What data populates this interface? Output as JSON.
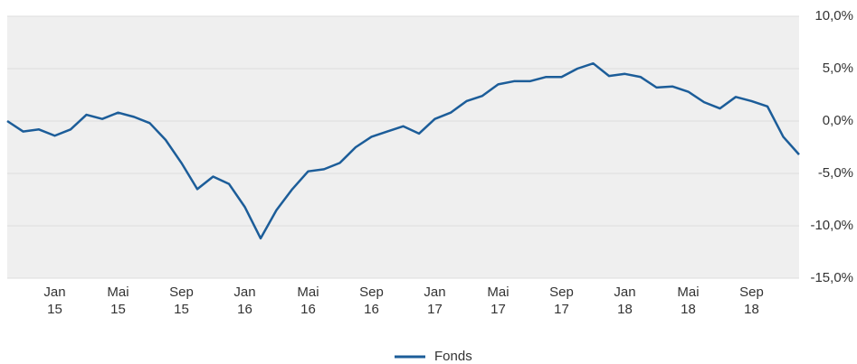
{
  "chart_data": {
    "type": "line",
    "x": [
      "2014-10",
      "2014-11",
      "2014-12",
      "2015-01",
      "2015-02",
      "2015-03",
      "2015-04",
      "2015-05",
      "2015-06",
      "2015-07",
      "2015-08",
      "2015-09",
      "2015-10",
      "2015-11",
      "2015-12",
      "2016-01",
      "2016-02",
      "2016-03",
      "2016-04",
      "2016-05",
      "2016-06",
      "2016-07",
      "2016-08",
      "2016-09",
      "2016-10",
      "2016-11",
      "2016-12",
      "2017-01",
      "2017-02",
      "2017-03",
      "2017-04",
      "2017-05",
      "2017-06",
      "2017-07",
      "2017-08",
      "2017-09",
      "2017-10",
      "2017-11",
      "2017-12",
      "2018-01",
      "2018-02",
      "2018-03",
      "2018-04",
      "2018-05",
      "2018-06",
      "2018-07",
      "2018-08",
      "2018-09",
      "2018-10",
      "2018-11",
      "2018-12"
    ],
    "series": [
      {
        "name": "Fonds",
        "color": "#1c5d99",
        "values": [
          0,
          -1,
          -0.8,
          -1.4,
          -0.8,
          0.6,
          0.2,
          0.8,
          0.4,
          -0.2,
          -1.8,
          -4,
          -6.5,
          -5.3,
          -6,
          -8.2,
          -11.2,
          -8.5,
          -6.5,
          -4.8,
          -4.6,
          -4,
          -2.5,
          -1.5,
          -1,
          -0.5,
          -1.2,
          0.2,
          0.8,
          1.9,
          2.4,
          3.5,
          3.8,
          3.8,
          4.2,
          4.2,
          5,
          5.5,
          4.3,
          4.5,
          4.2,
          3.2,
          3.3,
          2.8,
          1.8,
          1.2,
          2.3,
          1.9,
          1.4,
          -1.5,
          -3.2
        ]
      }
    ],
    "xlim": [
      "2014-10",
      "2018-12"
    ],
    "xticks": [
      {
        "value": "2015-01",
        "label": "Jan\n15"
      },
      {
        "value": "2015-05",
        "label": "Mai\n15"
      },
      {
        "value": "2015-09",
        "label": "Sep\n15"
      },
      {
        "value": "2016-01",
        "label": "Jan\n16"
      },
      {
        "value": "2016-05",
        "label": "Mai\n16"
      },
      {
        "value": "2016-09",
        "label": "Sep\n16"
      },
      {
        "value": "2017-01",
        "label": "Jan\n17"
      },
      {
        "value": "2017-05",
        "label": "Mai\n17"
      },
      {
        "value": "2017-09",
        "label": "Sep\n17"
      },
      {
        "value": "2018-01",
        "label": "Jan\n18"
      },
      {
        "value": "2018-05",
        "label": "Mai\n18"
      },
      {
        "value": "2018-09",
        "label": "Sep\n18"
      }
    ],
    "ylim": [
      -15,
      10
    ],
    "yticks": [
      {
        "value": -15,
        "label": "-15,0%"
      },
      {
        "value": -10,
        "label": "-10,0%"
      },
      {
        "value": -5,
        "label": "-5,0%"
      },
      {
        "value": 0,
        "label": "0,0%"
      },
      {
        "value": 5,
        "label": "5,0%"
      },
      {
        "value": 10,
        "label": "10,0%"
      }
    ],
    "grid": true,
    "legend": "bottom"
  }
}
